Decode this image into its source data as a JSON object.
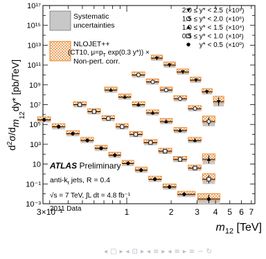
{
  "chart_data": {
    "type": "scatter",
    "title": "",
    "ylabel_parts": [
      "d",
      "2",
      "σ/d",
      "m",
      "12",
      "dy* [pb/TeV]"
    ],
    "xlabel_parts": [
      "m",
      "12",
      " [TeV]"
    ],
    "xlim": [
      0.27,
      7.4
    ],
    "ylim": [
      0.001,
      100000000000000000
    ],
    "xscale": "log",
    "yscale": "log",
    "xticks": [
      {
        "v": 0.3,
        "label": "3×10⁻¹"
      },
      {
        "v": 1,
        "label": "1"
      },
      {
        "v": 2,
        "label": "2"
      },
      {
        "v": 3,
        "label": "3"
      },
      {
        "v": 4,
        "label": "4"
      },
      {
        "v": 5,
        "label": "5"
      },
      {
        "v": 6,
        "label": "6"
      },
      {
        "v": 7,
        "label": "7"
      }
    ],
    "yticks": [
      {
        "e": -3,
        "label": "10⁻³"
      },
      {
        "e": -1,
        "label": "10⁻¹"
      },
      {
        "e": 1,
        "label": "10"
      },
      {
        "e": 3,
        "label": "10³"
      },
      {
        "e": 5,
        "label": "10⁵"
      },
      {
        "e": 7,
        "label": "10⁷"
      },
      {
        "e": 9,
        "label": "10⁹"
      },
      {
        "e": 11,
        "label": "10¹¹"
      },
      {
        "e": 13,
        "label": "10¹³"
      },
      {
        "e": 15,
        "label": "10¹⁵"
      },
      {
        "e": 17,
        "label": "10¹⁷"
      }
    ],
    "series": [
      {
        "name": "y* < 0.5 (×10⁰)",
        "marker": "filled-circle",
        "x": [
          0.275,
          0.345,
          0.43,
          0.54,
          0.67,
          0.83,
          1.02,
          1.25,
          1.55,
          1.95,
          2.45,
          3.6
        ],
        "y": [
          300000,
          60000,
          12000,
          2500,
          400,
          80,
          12,
          2.5,
          0.3,
          0.05,
          0.009,
          0.003
        ]
      },
      {
        "name": "0.5 ≤ y* < 1.0 (×10²)",
        "marker": "open-square",
        "x": [
          0.48,
          0.6,
          0.75,
          0.93,
          1.15,
          1.45,
          1.82,
          2.3,
          2.9,
          3.6
        ],
        "y": [
          10000000,
          2000000,
          400000,
          60000,
          10000,
          1500,
          200,
          30,
          4,
          0.3
        ]
      },
      {
        "name": "1.0 ≤ y* < 1.5 (×10⁴)",
        "marker": "filled-triangle-up",
        "x": [
          0.78,
          0.97,
          1.2,
          1.5,
          1.85,
          2.3,
          2.9,
          3.6
        ],
        "y": [
          300000000,
          60000000,
          10000000,
          1500000,
          200000,
          25000,
          2500,
          30
        ]
      },
      {
        "name": "1.5 ≤ y* < 2.0 (×10⁶)",
        "marker": "open-circle",
        "x": [
          1.2,
          1.5,
          1.85,
          2.3,
          2.9,
          3.6
        ],
        "y": [
          10000000000,
          2000000000,
          300000000,
          40000000,
          4000000,
          200000
        ]
      },
      {
        "name": "2.0 ≤ y* < 2.5 (×10⁸)",
        "marker": "filled-triangle-down",
        "x": [
          1.6,
          1.95,
          2.4,
          2.95,
          3.5,
          4.2
        ],
        "y": [
          500000000000,
          100000000000,
          20000000000,
          3000000000,
          200000000,
          20000000
        ]
      }
    ],
    "legend_left": [
      {
        "lines": [
          "Systematic",
          "uncertainties"
        ],
        "style": "gray-box"
      },
      {
        "lines": [
          "NLOJET++",
          "(CT10, μ=p",
          "T",
          " exp(0.3 y*)) ×",
          "Non-pert. corr."
        ],
        "style": "orange-hatch"
      }
    ],
    "legend_right": [
      {
        "marker": "filled-triangle-down",
        "range": "2.0 ≤ y* < 2.5",
        "factor": "(×10⁸)"
      },
      {
        "marker": "open-circle",
        "range": "1.5 ≤ y* < 2.0",
        "factor": "(×10⁶)"
      },
      {
        "marker": "filled-triangle-up",
        "range": "1.0 ≤ y* < 1.5",
        "factor": "(×10⁴)"
      },
      {
        "marker": "open-square",
        "range": "0.5 ≤ y* < 1.0",
        "factor": "(×10²)"
      },
      {
        "marker": "filled-circle",
        "range": "y* < 0.5",
        "factor": "(×10⁰)"
      }
    ],
    "annotations": {
      "atlas": "ATLAS",
      "preliminary": "Preliminary",
      "jets_prefix": "anti-k",
      "jets_sub": "t",
      "jets_suffix": " jets, R = 0.4",
      "energy": "√s = 7 TeV, ∫L dt = 4.8 fb⁻¹",
      "data_year": "2011 Data"
    },
    "colors": {
      "data": "#000000",
      "systematic": "#c8c8c8",
      "theory": "#e8872e"
    }
  },
  "nav": {
    "symbols": [
      "◂",
      "□",
      "▸",
      "◂",
      "⊡",
      "▸",
      "◂",
      "≡",
      "▸",
      "◂",
      "≡",
      "▸",
      "≡",
      "∽",
      "↻"
    ]
  }
}
